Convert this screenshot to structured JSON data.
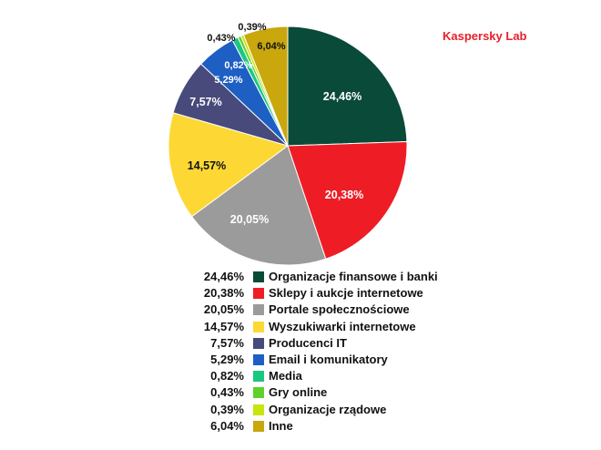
{
  "watermark": "Kaspersky Lab",
  "chart_data": {
    "type": "pie",
    "title": "",
    "slices": [
      {
        "label": "Organizacje finansowe i banki",
        "value": 24.46,
        "display": "24,46%",
        "color": "#0a4a38",
        "text_color": "#ffffff"
      },
      {
        "label": "Sklepy i aukcje internetowe",
        "value": 20.38,
        "display": "20,38%",
        "color": "#ee1c24",
        "text_color": "#ffffff"
      },
      {
        "label": "Portale społecznościowe",
        "value": 20.05,
        "display": "20,05%",
        "color": "#9b9b9b",
        "text_color": "#ffffff"
      },
      {
        "label": "Wyszukiwarki internetowe",
        "value": 14.57,
        "display": "14,57%",
        "color": "#fdd835",
        "text_color": "#111111"
      },
      {
        "label": "Producenci IT",
        "value": 7.57,
        "display": "7,57%",
        "color": "#474a7a",
        "text_color": "#ffffff"
      },
      {
        "label": "Email i komunikatory",
        "value": 5.29,
        "display": "5,29%",
        "color": "#1e5fc4",
        "text_color": "#ffffff"
      },
      {
        "label": "Media",
        "value": 0.82,
        "display": "0,82%",
        "color": "#1bc77f",
        "text_color": "#ffffff"
      },
      {
        "label": "Gry online",
        "value": 0.43,
        "display": "0,43%",
        "color": "#5ed12b",
        "text_color": "#111111"
      },
      {
        "label": "Organizacje rządowe",
        "value": 0.39,
        "display": "0,39%",
        "color": "#c9e40e",
        "text_color": "#111111"
      },
      {
        "label": "Inne",
        "value": 6.04,
        "display": "6,04%",
        "color": "#c9a70d",
        "text_color": "#111111"
      }
    ],
    "legend_values": [
      "24,46%",
      "20,38%",
      "20,05%",
      "14,57%",
      "7,57%",
      "5,29%",
      "0,82%",
      "0,43%",
      "0,39%",
      "6,04%"
    ]
  }
}
